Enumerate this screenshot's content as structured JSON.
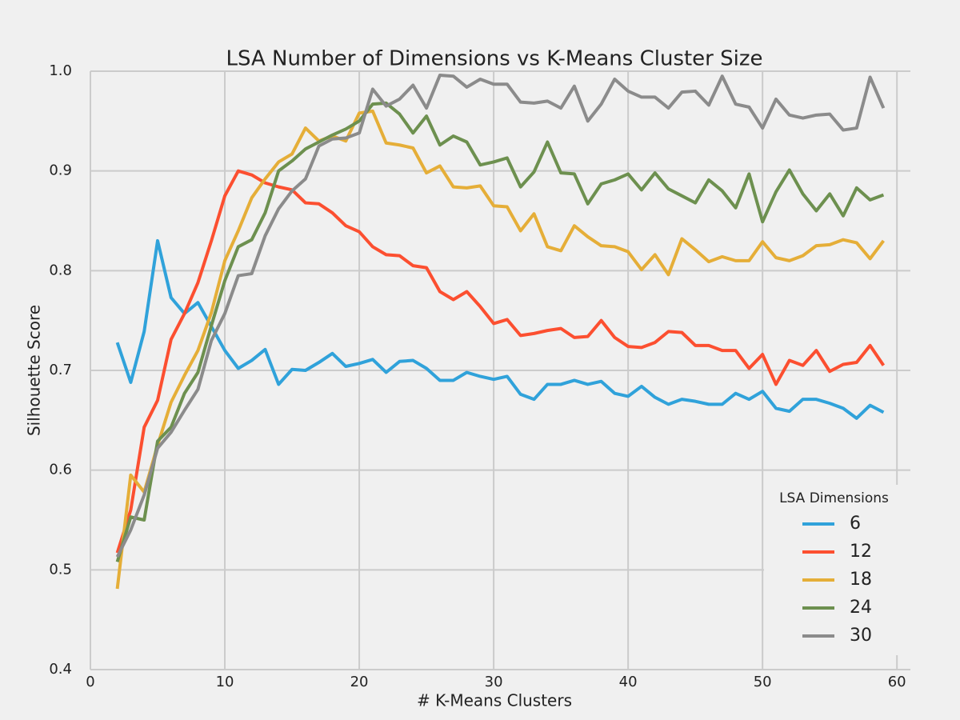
{
  "chart_data": {
    "type": "line",
    "title": "LSA Number of Dimensions vs K-Means Cluster Size",
    "xlabel": "# K-Means Clusters",
    "ylabel": "Silhouette Score",
    "x": [
      2,
      3,
      4,
      5,
      6,
      7,
      8,
      9,
      10,
      11,
      12,
      13,
      14,
      15,
      16,
      17,
      18,
      19,
      20,
      21,
      22,
      23,
      24,
      25,
      26,
      27,
      28,
      29,
      30,
      31,
      32,
      33,
      34,
      35,
      36,
      37,
      38,
      39,
      40,
      41,
      42,
      43,
      44,
      45,
      46,
      47,
      48,
      49,
      50,
      51,
      52,
      53,
      54,
      55,
      56,
      57,
      58,
      59
    ],
    "xlim": [
      0,
      61
    ],
    "xticks": [
      0,
      10,
      20,
      30,
      40,
      50,
      60
    ],
    "ylim": [
      0.4,
      1.0
    ],
    "yticks": [
      0.4,
      0.5,
      0.6,
      0.7,
      0.8,
      0.9,
      {
        "value": 1,
        "label": "1.0"
      }
    ],
    "grid": true,
    "legend": "lower right",
    "legend_title": "LSA Dimensions",
    "series": [
      {
        "name": "6",
        "color": "#30a2da",
        "values": [
          0.728,
          0.688,
          0.739,
          0.83,
          0.773,
          0.757,
          0.768,
          0.744,
          0.72,
          0.702,
          0.71,
          0.721,
          0.686,
          0.701,
          0.7,
          0.708,
          0.717,
          0.704,
          0.707,
          0.711,
          0.698,
          0.709,
          0.71,
          0.702,
          0.69,
          0.69,
          0.698,
          0.694,
          0.691,
          0.694,
          0.676,
          0.671,
          0.686,
          0.686,
          0.69,
          0.686,
          0.689,
          0.677,
          0.674,
          0.684,
          0.673,
          0.666,
          0.671,
          0.669,
          0.666,
          0.666,
          0.677,
          0.671,
          0.679,
          0.662,
          0.659,
          0.671,
          0.671,
          0.667,
          0.662,
          0.652,
          0.665,
          0.658
        ]
      },
      {
        "name": "12",
        "color": "#fc4f30",
        "values": [
          0.517,
          0.56,
          0.643,
          0.67,
          0.731,
          0.757,
          0.788,
          0.83,
          0.875,
          0.9,
          0.896,
          0.888,
          0.884,
          0.881,
          0.868,
          0.867,
          0.858,
          0.845,
          0.839,
          0.824,
          0.816,
          0.815,
          0.805,
          0.803,
          0.779,
          0.771,
          0.779,
          0.764,
          0.747,
          0.751,
          0.735,
          0.737,
          0.74,
          0.742,
          0.733,
          0.734,
          0.75,
          0.733,
          0.724,
          0.723,
          0.728,
          0.739,
          0.738,
          0.725,
          0.725,
          0.72,
          0.72,
          0.702,
          0.716,
          0.686,
          0.71,
          0.705,
          0.72,
          0.699,
          0.706,
          0.708,
          0.725,
          0.705
        ]
      },
      {
        "name": "18",
        "color": "#e5ae38",
        "values": [
          0.481,
          0.595,
          0.578,
          0.625,
          0.668,
          0.695,
          0.72,
          0.758,
          0.81,
          0.84,
          0.873,
          0.892,
          0.909,
          0.917,
          0.943,
          0.93,
          0.935,
          0.93,
          0.958,
          0.96,
          0.928,
          0.926,
          0.923,
          0.898,
          0.905,
          0.884,
          0.883,
          0.885,
          0.865,
          0.864,
          0.84,
          0.857,
          0.824,
          0.82,
          0.845,
          0.834,
          0.825,
          0.824,
          0.819,
          0.801,
          0.816,
          0.796,
          0.832,
          0.821,
          0.809,
          0.814,
          0.81,
          0.81,
          0.829,
          0.813,
          0.81,
          0.815,
          0.825,
          0.826,
          0.831,
          0.828,
          0.812,
          0.83
        ]
      },
      {
        "name": "24",
        "color": "#6d904f",
        "values": [
          0.508,
          0.553,
          0.55,
          0.629,
          0.643,
          0.677,
          0.698,
          0.745,
          0.79,
          0.824,
          0.831,
          0.858,
          0.9,
          0.91,
          0.922,
          0.929,
          0.936,
          0.942,
          0.95,
          0.967,
          0.968,
          0.957,
          0.938,
          0.955,
          0.926,
          0.935,
          0.929,
          0.906,
          0.909,
          0.913,
          0.884,
          0.899,
          0.929,
          0.898,
          0.897,
          0.867,
          0.887,
          0.891,
          0.897,
          0.881,
          0.898,
          0.882,
          0.875,
          0.868,
          0.891,
          0.88,
          0.863,
          0.897,
          0.849,
          0.879,
          0.901,
          0.877,
          0.86,
          0.877,
          0.855,
          0.883,
          0.871,
          0.876
        ]
      },
      {
        "name": "30",
        "color": "#8b8b8b",
        "values": [
          0.513,
          0.54,
          0.575,
          0.622,
          0.638,
          0.66,
          0.681,
          0.73,
          0.757,
          0.795,
          0.797,
          0.835,
          0.862,
          0.88,
          0.892,
          0.925,
          0.932,
          0.933,
          0.938,
          0.982,
          0.965,
          0.972,
          0.986,
          0.963,
          0.996,
          0.995,
          0.984,
          0.992,
          0.987,
          0.987,
          0.969,
          0.968,
          0.97,
          0.963,
          0.985,
          0.95,
          0.967,
          0.992,
          0.98,
          0.974,
          0.974,
          0.963,
          0.979,
          0.98,
          0.966,
          0.995,
          0.967,
          0.964,
          0.943,
          0.972,
          0.956,
          0.953,
          0.956,
          0.957,
          0.941,
          0.943,
          0.994,
          0.963
        ]
      }
    ]
  }
}
